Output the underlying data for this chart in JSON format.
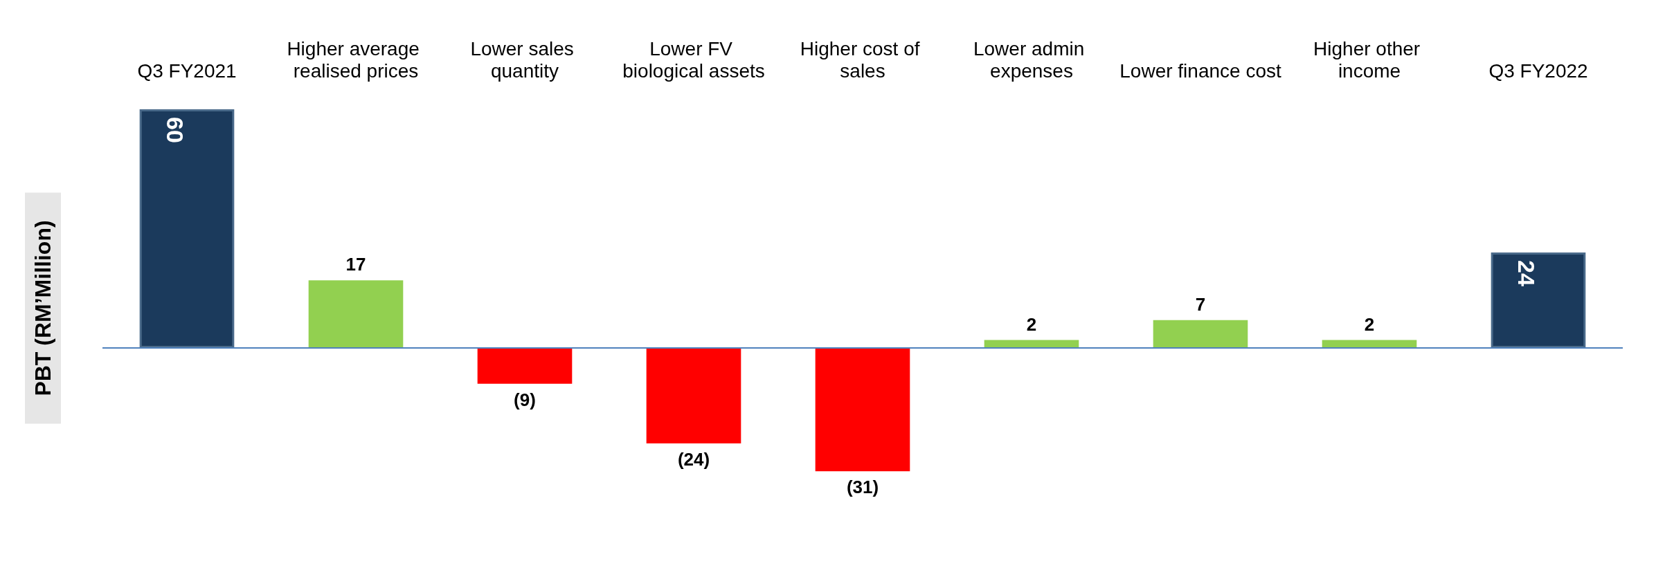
{
  "chart_data": {
    "type": "bar",
    "ylabel": "PBT (RM’Million)",
    "categories": [
      "Q3 FY2021",
      "Higher average realised prices",
      "Lower sales quantity",
      "Lower FV biological assets",
      "Higher cost of sales",
      "Lower admin expenses",
      "Lower finance cost",
      "Higher other income",
      "Q3 FY2022"
    ],
    "values": [
      60,
      17,
      -9,
      -24,
      -31,
      2,
      7,
      2,
      24
    ],
    "colors": [
      "#1b3a5c",
      "#92d050",
      "#ff0000",
      "#ff0000",
      "#ff0000",
      "#92d050",
      "#92d050",
      "#92d050",
      "#1b3a5c"
    ],
    "value_labels": [
      "60",
      "17",
      "(9)",
      "(24)",
      "(31)",
      "2",
      "7",
      "2",
      "24"
    ],
    "ref_lines": [
      {
        "axis": "y",
        "value": 0,
        "color": "#4f81bd"
      }
    ]
  }
}
